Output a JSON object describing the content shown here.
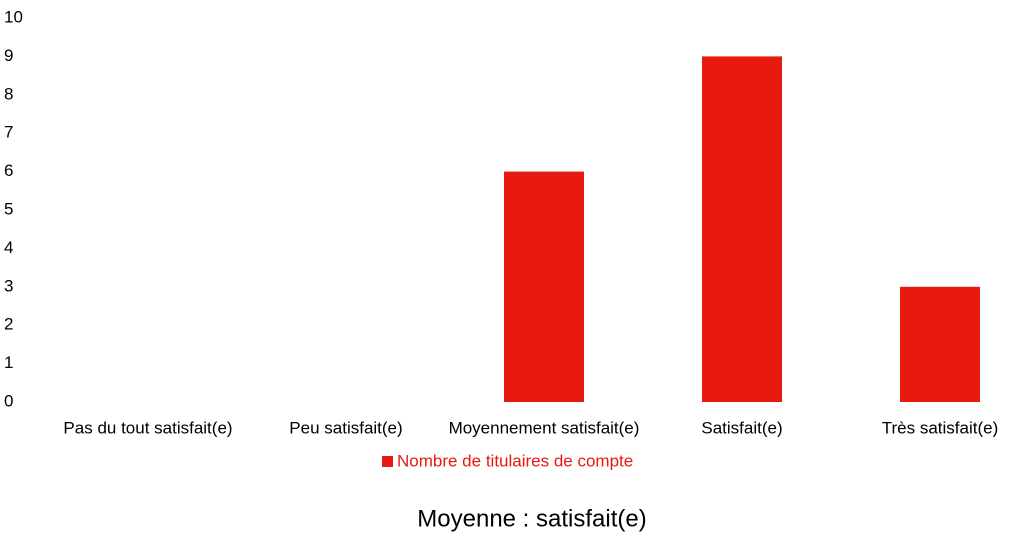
{
  "chart_data": {
    "type": "bar",
    "categories": [
      "Pas du tout satisfait(e)",
      "Peu satisfait(e)",
      "Moyennement satisfait(e)",
      "Satisfait(e)",
      "Très satisfait(e)"
    ],
    "series": [
      {
        "name": "Nombre de titulaires de compte",
        "color": "#e8190f",
        "values": [
          0,
          0,
          6,
          9,
          3
        ]
      }
    ],
    "ylim": [
      0,
      10
    ],
    "yticks": [
      0,
      1,
      2,
      3,
      4,
      5,
      6,
      7,
      8,
      9,
      10
    ],
    "grid": false,
    "legend": "bottom",
    "caption": "Moyenne : satisfait(e)"
  }
}
